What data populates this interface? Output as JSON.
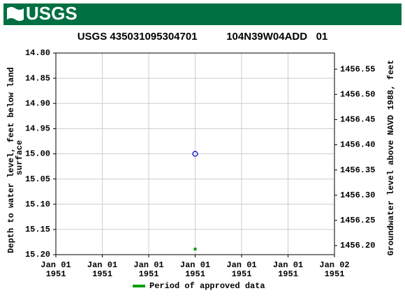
{
  "header": {
    "logo": "USGS"
  },
  "chart_data": {
    "type": "scatter",
    "title": "USGS 435031095304701          104N39W04ADD   01",
    "ylabel": [
      "Depth to water level, feet below land",
      "surface"
    ],
    "y2label": "Groundwater level above NAVD 1988, feet",
    "xlim": [
      0,
      6
    ],
    "xticks": [
      {
        "value": 0,
        "label": [
          "Jan 01",
          "1951"
        ]
      },
      {
        "value": 1,
        "label": [
          "Jan 01",
          "1951"
        ]
      },
      {
        "value": 2,
        "label": [
          "Jan 01",
          "1951"
        ]
      },
      {
        "value": 3,
        "label": [
          "Jan 01",
          "1951"
        ]
      },
      {
        "value": 4,
        "label": [
          "Jan 01",
          "1951"
        ]
      },
      {
        "value": 5,
        "label": [
          "Jan 01",
          "1951"
        ]
      },
      {
        "value": 6,
        "label": [
          "Jan 02",
          "1951"
        ]
      }
    ],
    "ylim": [
      15.2,
      14.8
    ],
    "yticks": [
      {
        "value": 14.8,
        "label": "14.80"
      },
      {
        "value": 14.85,
        "label": "14.85"
      },
      {
        "value": 14.9,
        "label": "14.90"
      },
      {
        "value": 14.95,
        "label": "14.95"
      },
      {
        "value": 15.0,
        "label": "15.00"
      },
      {
        "value": 15.05,
        "label": "15.05"
      },
      {
        "value": 15.1,
        "label": "15.10"
      },
      {
        "value": 15.15,
        "label": "15.15"
      },
      {
        "value": 15.2,
        "label": "15.20"
      }
    ],
    "y2lim": [
      1456.182,
      1456.582
    ],
    "y2ticks": [
      {
        "value": 1456.2,
        "label": "1456.20"
      },
      {
        "value": 1456.25,
        "label": "1456.25"
      },
      {
        "value": 1456.3,
        "label": "1456.30"
      },
      {
        "value": 1456.35,
        "label": "1456.35"
      },
      {
        "value": 1456.4,
        "label": "1456.40"
      },
      {
        "value": 1456.45,
        "label": "1456.45"
      },
      {
        "value": 1456.5,
        "label": "1456.50"
      },
      {
        "value": 1456.55,
        "label": "1456.55"
      }
    ],
    "grid": true,
    "series": [
      {
        "color": "#0000cc",
        "x": [
          3
        ],
        "values": [
          15.0
        ]
      }
    ],
    "approved_period": {
      "name": "Period of approved data",
      "color": "#00a000",
      "x": [
        3
      ]
    }
  }
}
